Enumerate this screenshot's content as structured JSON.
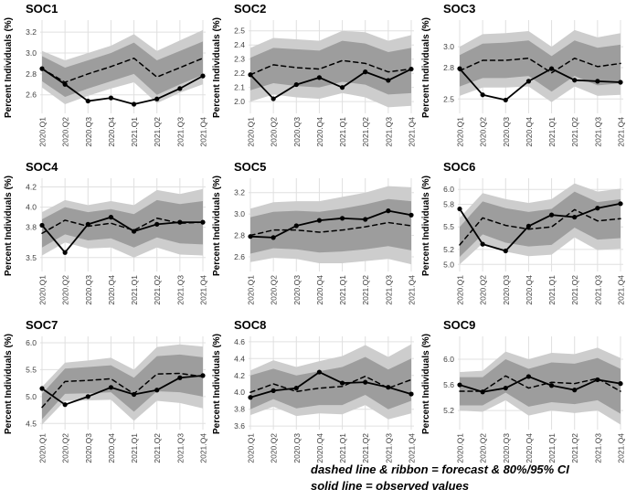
{
  "page": {
    "background": "#ffffff",
    "footnote_line1": "dashed line & ribbon = forecast & 80%/95% CI",
    "footnote_line2": "solid line = observed values"
  },
  "colors": {
    "ci95_ribbon": "#cdcdcd",
    "ci80_ribbon": "#9d9d9d",
    "line": "#000000",
    "gridline": "#e0e0e0",
    "tick_text": "#404040",
    "title_text": "#000000"
  },
  "chart_data": [
    {
      "type": "line",
      "title": "SOC1",
      "ylabel": "Percent Individuals (%)",
      "categories": [
        "2020.Q1",
        "2020.Q2",
        "2020.Q3",
        "2020.Q4",
        "2021.Q1",
        "2021.Q2",
        "2021.Q3",
        "2021.Q4"
      ],
      "yticks": [
        2.6,
        2.8,
        3.0,
        3.2
      ],
      "ylim": [
        2.44,
        3.28
      ],
      "grid": true,
      "legend_position": "none",
      "series": [
        {
          "name": "observed",
          "style": "solid",
          "values": [
            2.85,
            2.7,
            2.54,
            2.57,
            2.51,
            2.56,
            2.66,
            2.78
          ]
        },
        {
          "name": "forecast",
          "style": "dashed",
          "values": [
            2.85,
            2.72,
            2.8,
            2.87,
            2.95,
            2.77,
            2.86,
            2.95
          ]
        }
      ],
      "ribbons": {
        "ci80": {
          "upper": [
            2.97,
            2.86,
            2.93,
            3.0,
            3.1,
            2.93,
            3.02,
            3.11
          ],
          "lower": [
            2.73,
            2.58,
            2.66,
            2.73,
            2.8,
            2.6,
            2.7,
            2.79
          ]
        },
        "ci95": {
          "upper": [
            3.02,
            2.93,
            3.0,
            3.07,
            3.18,
            3.02,
            3.12,
            3.22
          ],
          "lower": [
            2.67,
            2.51,
            2.59,
            2.66,
            2.72,
            2.52,
            2.62,
            2.7
          ]
        }
      }
    },
    {
      "type": "line",
      "title": "SOC2",
      "ylabel": "Percent Individuals (%)",
      "categories": [
        "2020.Q1",
        "2020.Q2",
        "2020.Q3",
        "2020.Q4",
        "2021.Q1",
        "2021.Q2",
        "2021.Q3",
        "2021.Q4"
      ],
      "yticks": [
        2.0,
        2.1,
        2.2,
        2.3,
        2.4,
        2.5
      ],
      "ylim": [
        1.93,
        2.55
      ],
      "grid": true,
      "legend_position": "none",
      "series": [
        {
          "name": "observed",
          "style": "solid",
          "values": [
            2.19,
            2.02,
            2.12,
            2.17,
            2.1,
            2.21,
            2.15,
            2.23
          ]
        },
        {
          "name": "forecast",
          "style": "dashed",
          "values": [
            2.19,
            2.26,
            2.24,
            2.23,
            2.29,
            2.27,
            2.21,
            2.23
          ]
        }
      ],
      "ribbons": {
        "ci80": {
          "upper": [
            2.31,
            2.38,
            2.37,
            2.36,
            2.43,
            2.41,
            2.35,
            2.38
          ],
          "lower": [
            2.08,
            2.13,
            2.11,
            2.1,
            2.14,
            2.12,
            2.05,
            2.06
          ]
        },
        "ci95": {
          "upper": [
            2.38,
            2.45,
            2.44,
            2.43,
            2.5,
            2.49,
            2.43,
            2.47
          ],
          "lower": [
            2.0,
            2.05,
            2.03,
            2.02,
            2.06,
            2.03,
            1.96,
            1.97
          ]
        }
      }
    },
    {
      "type": "line",
      "title": "SOC3",
      "ylabel": "Percent Individuals (%)",
      "categories": [
        "2020.Q1",
        "2020.Q2",
        "2020.Q3",
        "2020.Q4",
        "2021.Q1",
        "2021.Q2",
        "2021.Q3",
        "2021.Q4"
      ],
      "yticks": [
        2.5,
        2.8,
        3.0
      ],
      "ylim": [
        2.38,
        3.22
      ],
      "grid": true,
      "legend_position": "none",
      "series": [
        {
          "name": "observed",
          "style": "solid",
          "values": [
            2.79,
            2.54,
            2.49,
            2.67,
            2.79,
            2.68,
            2.67,
            2.66
          ]
        },
        {
          "name": "forecast",
          "style": "dashed",
          "values": [
            2.77,
            2.87,
            2.87,
            2.89,
            2.75,
            2.89,
            2.81,
            2.84
          ]
        }
      ],
      "ribbons": {
        "ci80": {
          "upper": [
            2.92,
            3.03,
            3.04,
            3.06,
            2.91,
            3.06,
            2.99,
            3.02
          ],
          "lower": [
            2.62,
            2.7,
            2.7,
            2.72,
            2.57,
            2.72,
            2.63,
            2.65
          ]
        },
        "ci95": {
          "upper": [
            3.0,
            3.12,
            3.13,
            3.15,
            3.0,
            3.16,
            3.09,
            3.13
          ],
          "lower": [
            2.53,
            2.61,
            2.61,
            2.62,
            2.47,
            2.62,
            2.53,
            2.54
          ]
        }
      }
    },
    {
      "type": "line",
      "title": "SOC4",
      "ylabel": "Percent Individuals (%)",
      "categories": [
        "2020.Q1",
        "2020.Q2",
        "2020.Q3",
        "2020.Q4",
        "2021.Q1",
        "2021.Q2",
        "2021.Q3",
        "2021.Q4"
      ],
      "yticks": [
        3.5,
        3.8,
        4.0,
        4.2
      ],
      "ylim": [
        3.38,
        4.25
      ],
      "grid": true,
      "legend_position": "none",
      "series": [
        {
          "name": "observed",
          "style": "solid",
          "values": [
            3.82,
            3.55,
            3.83,
            3.9,
            3.76,
            3.83,
            3.85,
            3.85
          ]
        },
        {
          "name": "forecast",
          "style": "dashed",
          "values": [
            3.74,
            3.87,
            3.81,
            3.84,
            3.77,
            3.89,
            3.84,
            3.85
          ]
        }
      ],
      "ribbons": {
        "ci80": {
          "upper": [
            3.88,
            4.0,
            3.95,
            3.98,
            3.93,
            4.07,
            4.03,
            4.06
          ],
          "lower": [
            3.6,
            3.73,
            3.67,
            3.69,
            3.6,
            3.7,
            3.64,
            3.63
          ]
        },
        "ci95": {
          "upper": [
            3.95,
            4.07,
            4.02,
            4.06,
            4.02,
            4.17,
            4.13,
            4.18
          ],
          "lower": [
            3.52,
            3.65,
            3.59,
            3.6,
            3.5,
            3.6,
            3.53,
            3.52
          ]
        }
      }
    },
    {
      "type": "line",
      "title": "SOC5",
      "ylabel": "Percent Individuals (%)",
      "categories": [
        "2020.Q1",
        "2020.Q2",
        "2020.Q3",
        "2020.Q4",
        "2021.Q1",
        "2021.Q2",
        "2021.Q3",
        "2021.Q4"
      ],
      "yticks": [
        2.6,
        2.8,
        3.0,
        3.2
      ],
      "ylim": [
        2.48,
        3.3
      ],
      "grid": true,
      "legend_position": "none",
      "series": [
        {
          "name": "observed",
          "style": "solid",
          "values": [
            2.79,
            2.78,
            2.89,
            2.94,
            2.96,
            2.95,
            3.03,
            2.99
          ]
        },
        {
          "name": "forecast",
          "style": "dashed",
          "values": [
            2.8,
            2.85,
            2.85,
            2.83,
            2.85,
            2.88,
            2.92,
            2.89
          ]
        }
      ],
      "ribbons": {
        "ci80": {
          "upper": [
            2.97,
            3.02,
            3.03,
            3.02,
            3.05,
            3.09,
            3.14,
            3.12
          ],
          "lower": [
            2.63,
            2.68,
            2.67,
            2.64,
            2.65,
            2.67,
            2.7,
            2.66
          ]
        },
        "ci95": {
          "upper": [
            3.05,
            3.11,
            3.12,
            3.12,
            3.16,
            3.2,
            3.26,
            3.25
          ],
          "lower": [
            2.55,
            2.59,
            2.58,
            2.54,
            2.54,
            2.56,
            2.58,
            2.53
          ]
        }
      }
    },
    {
      "type": "line",
      "title": "SOC6",
      "ylabel": "Percent Individuals (%)",
      "categories": [
        "2020.Q1",
        "2020.Q2",
        "2020.Q3",
        "2020.Q4",
        "2021.Q1",
        "2021.Q2",
        "2021.Q3",
        "2021.Q4"
      ],
      "yticks": [
        5.0,
        5.2,
        5.5,
        5.8,
        6.0
      ],
      "ylim": [
        4.93,
        6.1
      ],
      "grid": true,
      "legend_position": "none",
      "series": [
        {
          "name": "observed",
          "style": "solid",
          "values": [
            5.74,
            5.27,
            5.18,
            5.51,
            5.66,
            5.63,
            5.75,
            5.81
          ]
        },
        {
          "name": "forecast",
          "style": "dashed",
          "values": [
            5.26,
            5.62,
            5.52,
            5.47,
            5.5,
            5.73,
            5.58,
            5.61
          ]
        }
      ],
      "ribbons": {
        "ci80": {
          "upper": [
            5.5,
            5.84,
            5.75,
            5.7,
            5.74,
            5.97,
            5.83,
            5.87
          ],
          "lower": [
            5.1,
            5.4,
            5.29,
            5.24,
            5.26,
            5.49,
            5.33,
            5.35
          ]
        },
        "ci95": {
          "upper": [
            5.62,
            5.95,
            5.87,
            5.82,
            5.87,
            6.08,
            5.97,
            6.01
          ],
          "lower": [
            5.0,
            5.28,
            5.17,
            5.11,
            5.13,
            5.36,
            5.19,
            5.21
          ]
        }
      }
    },
    {
      "type": "line",
      "title": "SOC7",
      "ylabel": "Percent Individuals (%)",
      "categories": [
        "2020.Q1",
        "2020.Q2",
        "2020.Q3",
        "2020.Q4",
        "2021.Q1",
        "2021.Q2",
        "2021.Q3",
        "2021.Q4"
      ],
      "yticks": [
        4.5,
        5.0,
        5.5,
        6.0
      ],
      "ylim": [
        4.42,
        6.05
      ],
      "grid": true,
      "legend_position": "none",
      "series": [
        {
          "name": "observed",
          "style": "solid",
          "values": [
            5.15,
            4.85,
            5.0,
            5.17,
            5.04,
            5.12,
            5.35,
            5.39
          ]
        },
        {
          "name": "forecast",
          "style": "dashed",
          "values": [
            4.8,
            5.28,
            5.3,
            5.33,
            5.05,
            5.42,
            5.43,
            5.37
          ]
        }
      ],
      "ribbons": {
        "ci80": {
          "upper": [
            5.05,
            5.52,
            5.55,
            5.58,
            5.35,
            5.75,
            5.78,
            5.73
          ],
          "lower": [
            4.58,
            5.05,
            5.06,
            5.08,
            4.72,
            5.1,
            5.08,
            5.0
          ]
        },
        "ci95": {
          "upper": [
            5.18,
            5.63,
            5.67,
            5.72,
            5.5,
            5.92,
            5.97,
            5.93
          ],
          "lower": [
            4.48,
            4.92,
            4.93,
            4.94,
            4.55,
            4.92,
            4.88,
            4.78
          ]
        }
      }
    },
    {
      "type": "line",
      "title": "SOC8",
      "ylabel": "Percent Individuals (%)",
      "categories": [
        "2020.Q1",
        "2020.Q2",
        "2020.Q3",
        "2020.Q4",
        "2021.Q1",
        "2021.Q2",
        "2021.Q3",
        "2021.Q4"
      ],
      "yticks": [
        3.6,
        3.8,
        4.0,
        4.2,
        4.4,
        4.6
      ],
      "ylim": [
        3.58,
        4.62
      ],
      "grid": true,
      "legend_position": "none",
      "series": [
        {
          "name": "observed",
          "style": "solid",
          "values": [
            3.94,
            4.02,
            4.05,
            4.24,
            4.11,
            4.12,
            4.06,
            3.98
          ]
        },
        {
          "name": "forecast",
          "style": "dashed",
          "values": [
            4.0,
            4.1,
            4.01,
            4.05,
            4.07,
            4.19,
            4.05,
            4.15
          ]
        }
      ],
      "ribbons": {
        "ci80": {
          "upper": [
            4.2,
            4.28,
            4.2,
            4.25,
            4.3,
            4.42,
            4.27,
            4.4
          ],
          "lower": [
            3.8,
            3.92,
            3.81,
            3.85,
            3.85,
            3.97,
            3.8,
            3.9
          ]
        },
        "ci95": {
          "upper": [
            4.26,
            4.38,
            4.3,
            4.37,
            4.43,
            4.56,
            4.42,
            4.57
          ],
          "lower": [
            3.73,
            3.83,
            3.72,
            3.75,
            3.74,
            3.85,
            3.68,
            3.75
          ]
        }
      }
    },
    {
      "type": "line",
      "title": "SOC9",
      "ylabel": "Percent Individuals (%)",
      "categories": [
        "2020.Q1",
        "2020.Q2",
        "2020.Q3",
        "2020.Q4",
        "2021.Q1",
        "2021.Q2",
        "2021.Q3",
        "2021.Q4"
      ],
      "yticks": [
        5.2,
        5.6,
        6.0
      ],
      "ylim": [
        4.93,
        6.3
      ],
      "grid": true,
      "legend_position": "none",
      "series": [
        {
          "name": "observed",
          "style": "solid",
          "values": [
            5.6,
            5.49,
            5.55,
            5.73,
            5.59,
            5.52,
            5.68,
            5.62
          ]
        },
        {
          "name": "forecast",
          "style": "dashed",
          "values": [
            5.5,
            5.5,
            5.74,
            5.55,
            5.64,
            5.62,
            5.7,
            5.5
          ]
        }
      ],
      "ribbons": {
        "ci80": {
          "upper": [
            5.72,
            5.72,
            6.0,
            5.85,
            5.95,
            5.93,
            6.02,
            5.85
          ],
          "lower": [
            5.28,
            5.28,
            5.48,
            5.26,
            5.33,
            5.3,
            5.36,
            5.15
          ]
        },
        "ci95": {
          "upper": [
            5.8,
            5.82,
            6.12,
            6.0,
            6.1,
            6.08,
            6.18,
            6.02
          ],
          "lower": [
            5.2,
            5.18,
            5.36,
            5.12,
            5.2,
            5.16,
            5.2,
            4.98
          ]
        }
      }
    }
  ]
}
